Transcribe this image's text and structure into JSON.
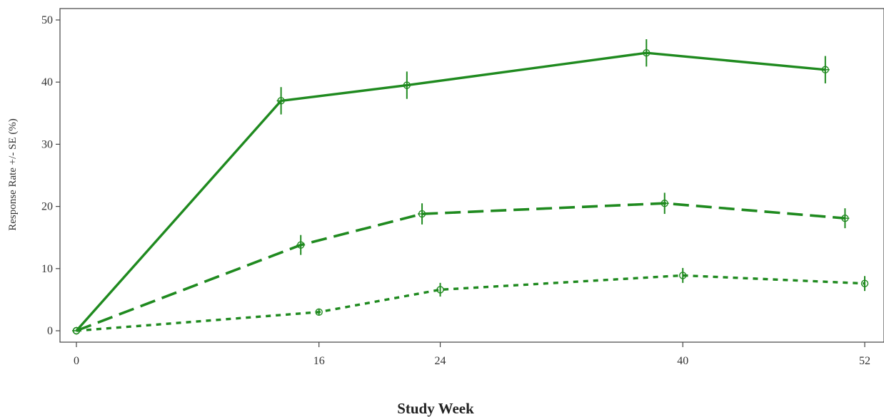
{
  "chart_data": {
    "type": "line",
    "xlabel": "Study Week",
    "ylabel": "Response Rate +/- SE (%)",
    "xlim": [
      0,
      52
    ],
    "ylim": [
      0,
      50
    ],
    "x_ticks": [
      0,
      16,
      24,
      40,
      52
    ],
    "y_ticks": [
      0,
      10,
      20,
      30,
      40,
      50
    ],
    "grid": false,
    "legend": "none",
    "series": [
      {
        "line_style": "solid",
        "color": "#1f8a1f",
        "marker": "plus",
        "points": [
          {
            "x": 0,
            "y": 0,
            "se": 0
          },
          {
            "x": 13.5,
            "y": 37,
            "se": 2.2
          },
          {
            "x": 21.8,
            "y": 39.5,
            "se": 2.2
          },
          {
            "x": 37.6,
            "y": 44.7,
            "se": 2.2
          },
          {
            "x": 49.4,
            "y": 42,
            "se": 2.2
          }
        ]
      },
      {
        "line_style": "dashed",
        "color": "#1f8a1f",
        "marker": "plus",
        "points": [
          {
            "x": 0,
            "y": 0,
            "se": 0
          },
          {
            "x": 14.8,
            "y": 13.8,
            "se": 1.6
          },
          {
            "x": 22.8,
            "y": 18.8,
            "se": 1.7
          },
          {
            "x": 38.8,
            "y": 20.5,
            "se": 1.7
          },
          {
            "x": 50.7,
            "y": 18.1,
            "se": 1.6
          }
        ]
      },
      {
        "line_style": "dotted",
        "color": "#1f8a1f",
        "marker": "circle",
        "points": [
          {
            "x": 0,
            "y": 0,
            "se": 0
          },
          {
            "x": 16,
            "y": 3,
            "se": 0.5
          },
          {
            "x": 24,
            "y": 6.6,
            "se": 1.1
          },
          {
            "x": 40,
            "y": 8.9,
            "se": 1.2
          },
          {
            "x": 52,
            "y": 7.6,
            "se": 1.2
          }
        ]
      }
    ]
  }
}
